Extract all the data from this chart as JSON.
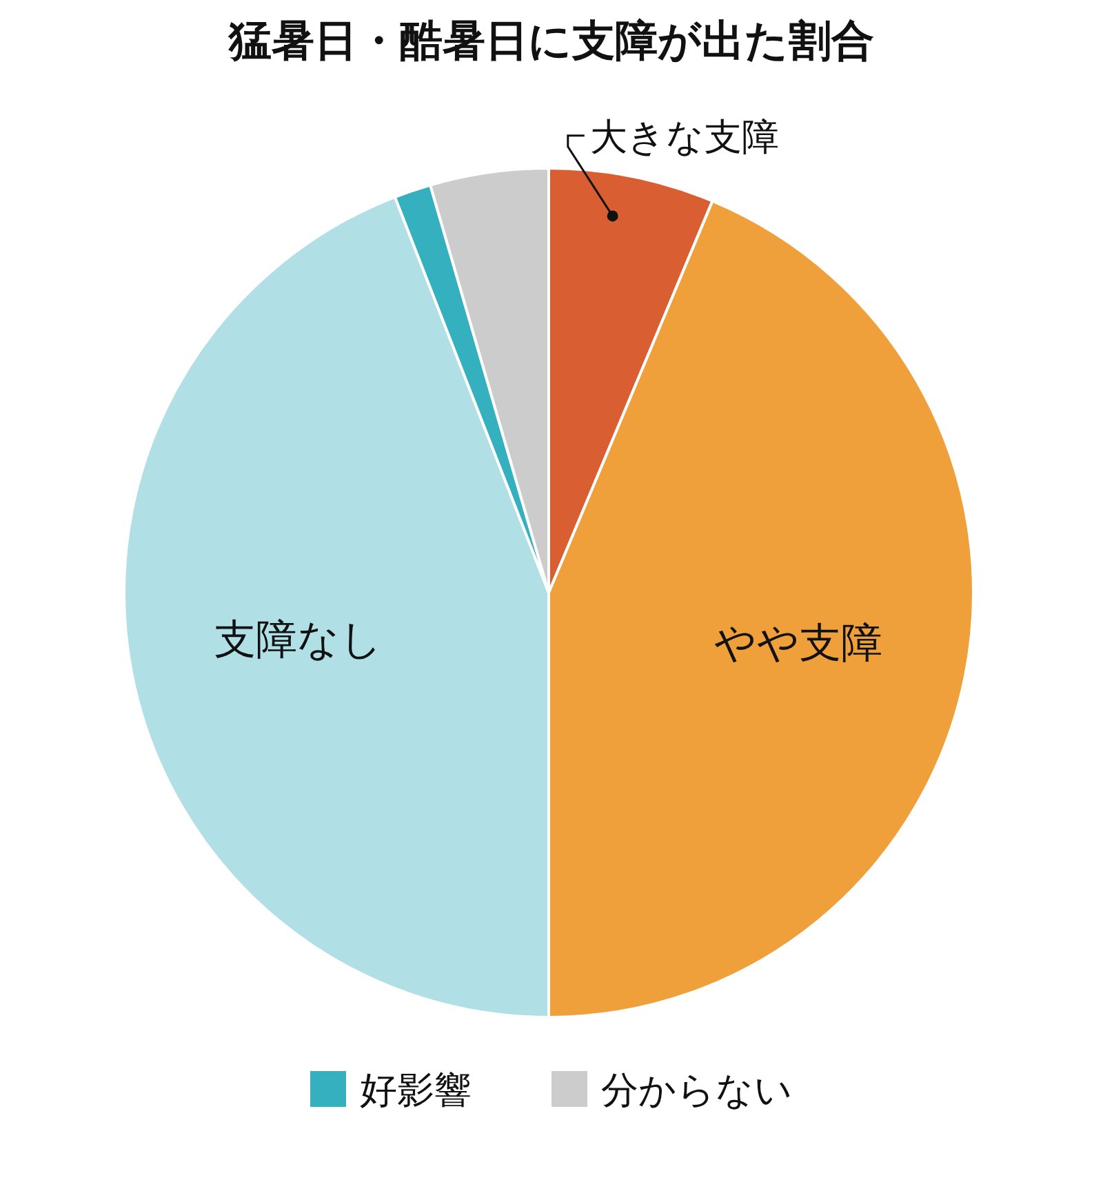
{
  "chart_data": {
    "type": "pie",
    "title": "猛暑日・酷暑日に支障が出た割合",
    "categories": [
      "大きな支障",
      "やや支障",
      "支障なし",
      "好影響",
      "分からない"
    ],
    "values": [
      6.3,
      43.7,
      44.1,
      1.4,
      4.5
    ],
    "colors": [
      "#d95f33",
      "#f0a03a",
      "#b0dfe5",
      "#35b0bf",
      "#cccccc"
    ],
    "legend": "bottom"
  }
}
